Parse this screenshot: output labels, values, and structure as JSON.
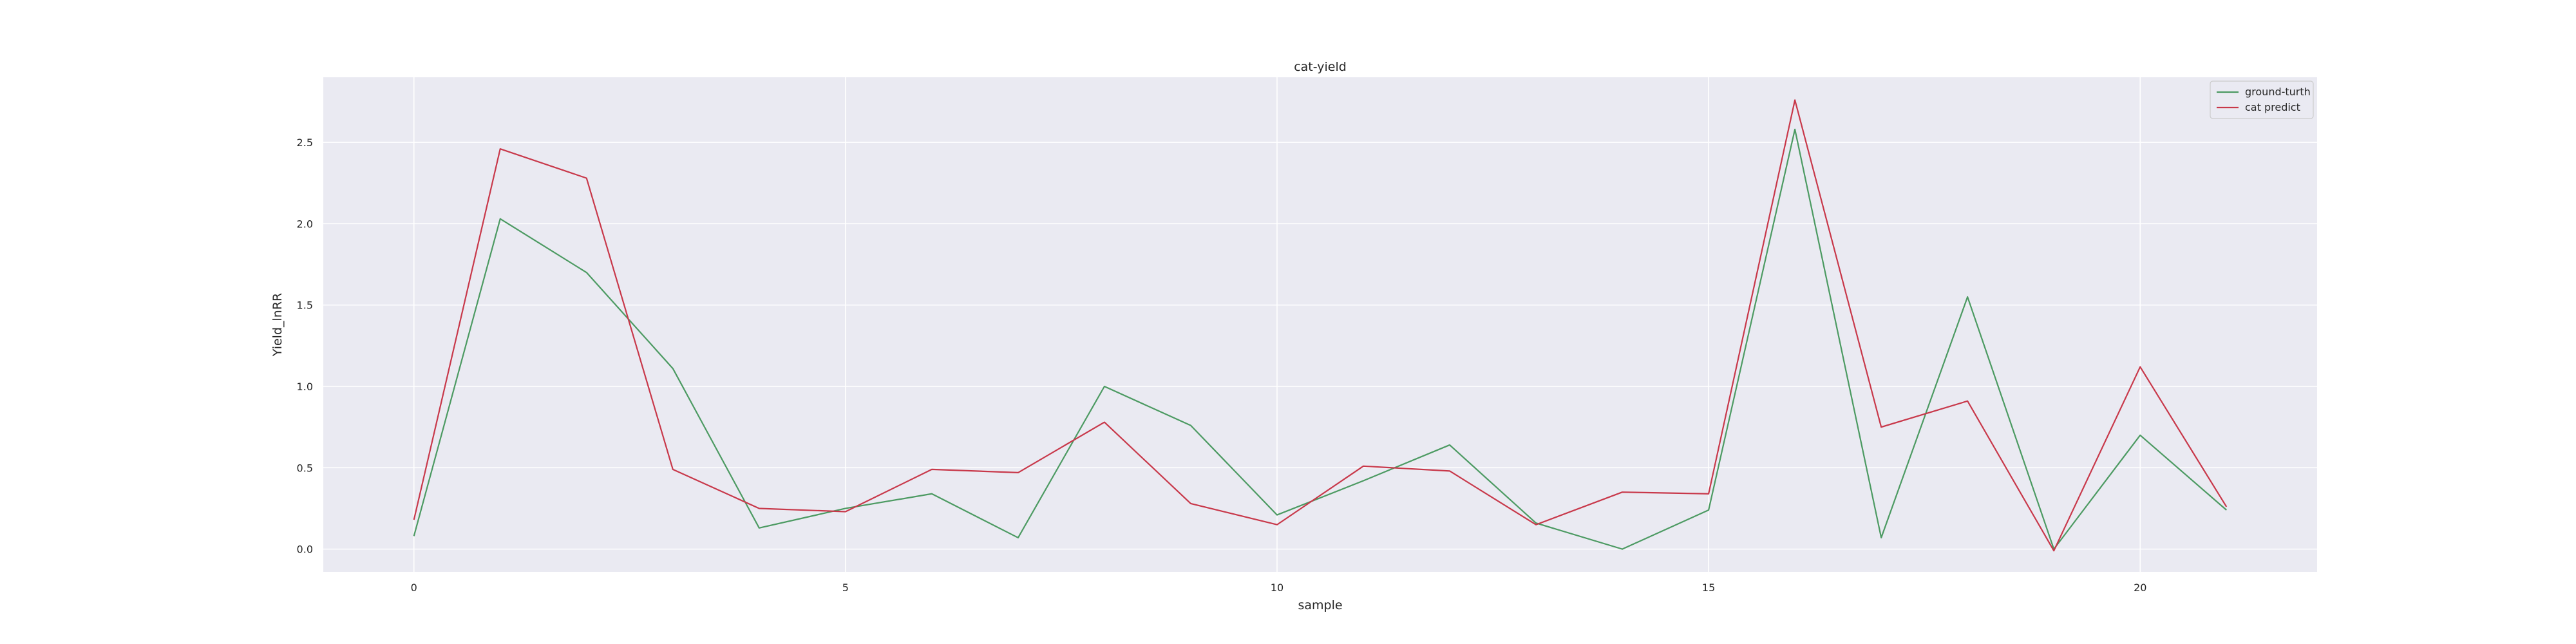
{
  "chart_data": {
    "type": "line",
    "title": "cat-yield",
    "xlabel": "sample",
    "ylabel": "Yield_lnRR",
    "xlim": [
      -1.05,
      22.05
    ],
    "ylim": [
      -0.14,
      2.9
    ],
    "xticks": [
      0,
      5,
      10,
      15,
      20
    ],
    "xtick_labels": [
      "0",
      "5",
      "10",
      "15",
      "20"
    ],
    "yticks": [
      0.0,
      0.5,
      1.0,
      1.5,
      2.0,
      2.5
    ],
    "ytick_labels": [
      "0.0",
      "0.5",
      "1.0",
      "1.5",
      "2.0",
      "2.5"
    ],
    "grid": true,
    "legend_position": "top-right",
    "x": [
      0,
      1,
      2,
      3,
      4,
      5,
      6,
      7,
      8,
      9,
      10,
      11,
      12,
      13,
      14,
      15,
      16,
      17,
      18,
      19,
      20,
      21
    ],
    "series": [
      {
        "name": "ground-turth",
        "color": "#4c9a62",
        "values": [
          0.08,
          2.03,
          1.7,
          1.11,
          0.13,
          0.25,
          0.34,
          0.07,
          1.0,
          0.76,
          0.21,
          0.42,
          0.64,
          0.16,
          0.0,
          0.24,
          2.58,
          0.07,
          1.55,
          0.0,
          0.7,
          0.24
        ]
      },
      {
        "name": "cat predict",
        "color": "#c8384a",
        "values": [
          0.18,
          2.46,
          2.28,
          0.49,
          0.25,
          0.23,
          0.49,
          0.47,
          0.78,
          0.28,
          0.15,
          0.51,
          0.48,
          0.15,
          0.35,
          0.34,
          2.76,
          0.75,
          0.91,
          -0.01,
          1.12,
          0.26
        ]
      }
    ]
  },
  "colors": {
    "plot_background": "#eaeaf2",
    "grid": "#ffffff",
    "page_background": "#ffffff"
  }
}
